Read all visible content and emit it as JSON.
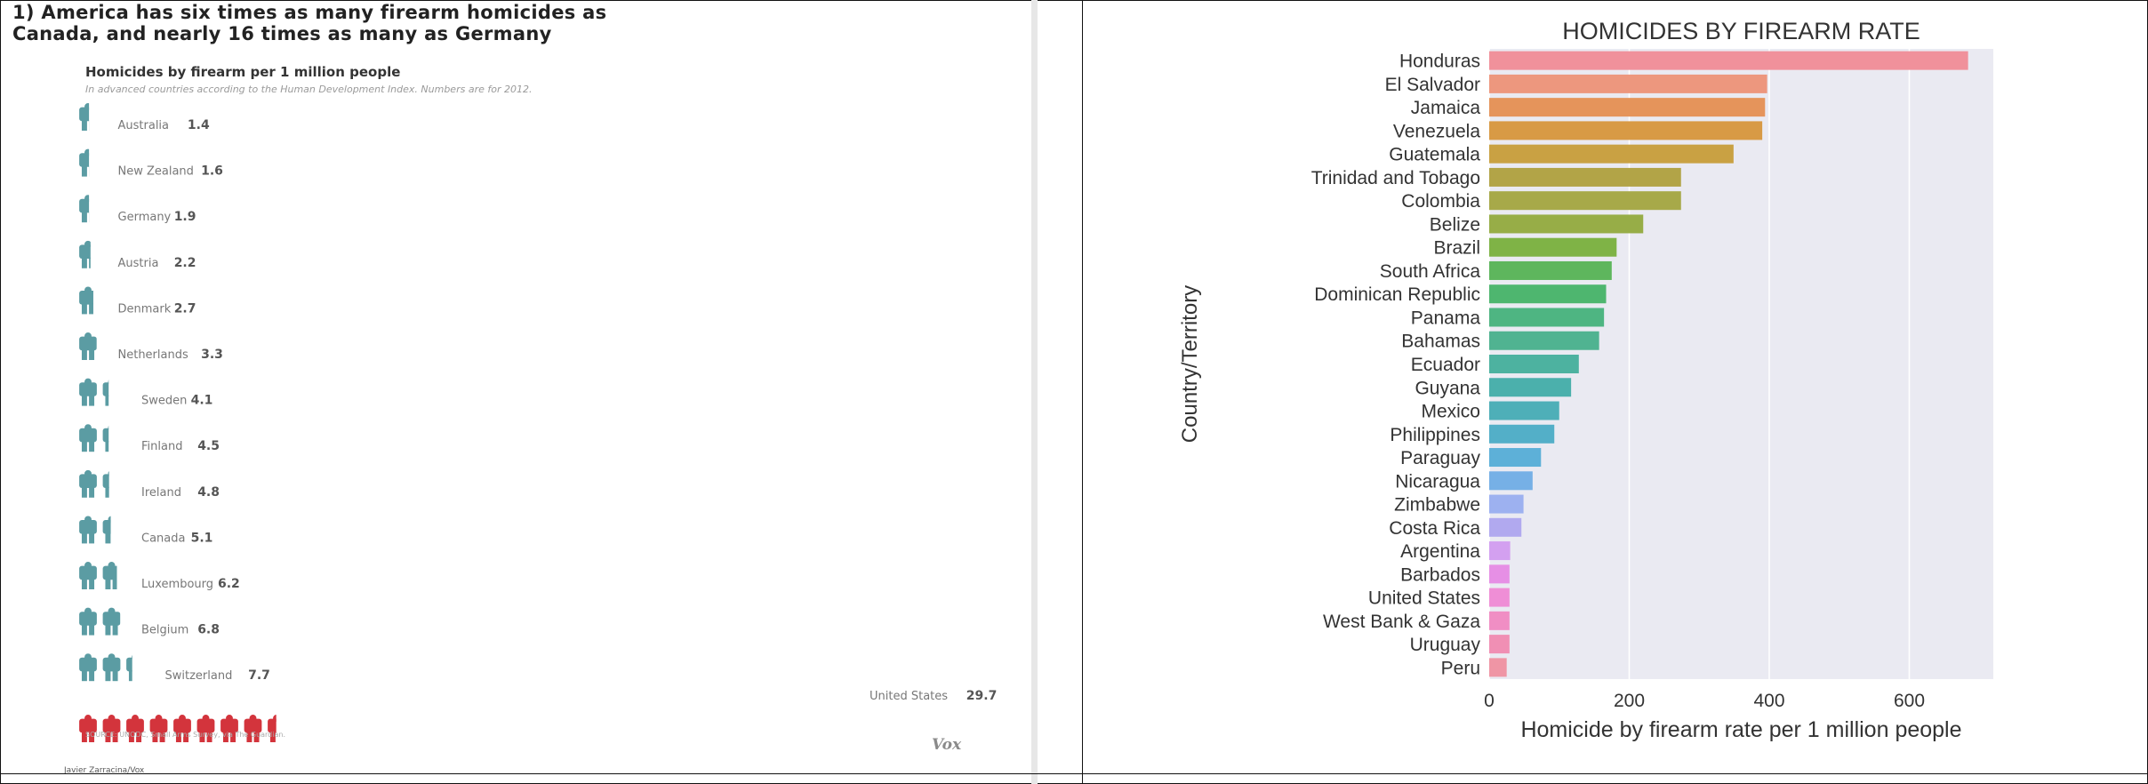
{
  "left_panel": {
    "headline_lines": [
      "1) America has six times as many firearm homicides as",
      "Canada, and nearly 16 times as many as Germany"
    ],
    "subtitle": "Homicides by firearm per 1 million people",
    "note": "In advanced countries according to the Human Development Index. Numbers are for 2012.",
    "source": "SOURCE: UNODC, Small Arms Survey, via The Guardian.",
    "brand": "Vox",
    "credit": "Javier Zarracina/Vox",
    "teal_color": "#5b9ca3",
    "red_color": "#d3343c"
  },
  "chart_data": [
    {
      "type": "bar",
      "orientation": "horizontal",
      "title": "1) America has six times as many firearm homicides as Canada, and nearly 16 times as many as Germany",
      "subtitle": "Homicides by firearm per 1 million people",
      "note": "In advanced countries according to the Human Development Index. Numbers are for 2012.",
      "categories": [
        "Australia",
        "New Zealand",
        "Germany",
        "Austria",
        "Denmark",
        "Netherlands",
        "Sweden",
        "Finland",
        "Ireland",
        "Canada",
        "Luxembourg",
        "Belgium",
        "Switzerland",
        "United States"
      ],
      "values": [
        1.4,
        1.6,
        1.9,
        2.2,
        2.7,
        3.3,
        4.1,
        4.5,
        4.8,
        5.1,
        6.2,
        6.8,
        7.7,
        29.7
      ],
      "value_labels": [
        "1.4",
        "1.6",
        "1.9",
        "2.2",
        "2.7",
        "3.3",
        "4.1",
        "4.5",
        "4.8",
        "5.1",
        "6.2",
        "6.8",
        "7.7",
        "29.7"
      ],
      "encoding": "isotype figures",
      "highlight": "United States"
    },
    {
      "type": "bar",
      "orientation": "horizontal",
      "title": "HOMICIDES BY FIREARM RATE",
      "xlabel": "Homicide by firearm rate per 1 million people",
      "ylabel": "Country/Territory",
      "xlim": [
        0,
        720
      ],
      "xticks": [
        0,
        200,
        400,
        600
      ],
      "xtick_labels": [
        "0",
        "200",
        "400",
        "600"
      ],
      "grid": true,
      "background": "#eaeaf2",
      "categories": [
        "Honduras",
        "El Salvador",
        "Jamaica",
        "Venezuela",
        "Guatemala",
        "Trinidad and Tobago",
        "Colombia",
        "Belize",
        "Brazil",
        "South Africa",
        "Dominican Republic",
        "Panama",
        "Bahamas",
        "Ecuador",
        "Guyana",
        "Mexico",
        "Philippines",
        "Paraguay",
        "Nicaragua",
        "Zimbabwe",
        "Costa Rica",
        "Argentina",
        "Barbados",
        "United States",
        "West Bank & Gaza",
        "Uruguay",
        "Peru"
      ],
      "values": [
        684,
        397,
        394,
        390,
        349,
        274,
        274,
        220,
        182,
        175,
        167,
        164,
        157,
        128,
        117,
        100,
        93,
        74,
        62,
        49,
        46,
        30,
        29,
        29,
        29,
        29,
        25
      ],
      "colors": [
        "#f0919b",
        "#ed977e",
        "#e5945b",
        "#d89a45",
        "#c9a143",
        "#b2a447",
        "#a7a949",
        "#97ad47",
        "#7fb346",
        "#5eb65d",
        "#4eb66f",
        "#4eb582",
        "#50b391",
        "#4db2a0",
        "#4bb0ac",
        "#4eafb8",
        "#53afc8",
        "#5db0d8",
        "#76b0e6",
        "#9db1f0",
        "#b1a9ef",
        "#d3a0f0",
        "#e68fe5",
        "#ef8ed6",
        "#f08ec4",
        "#f08fb4",
        "#ef95a5"
      ]
    }
  ]
}
